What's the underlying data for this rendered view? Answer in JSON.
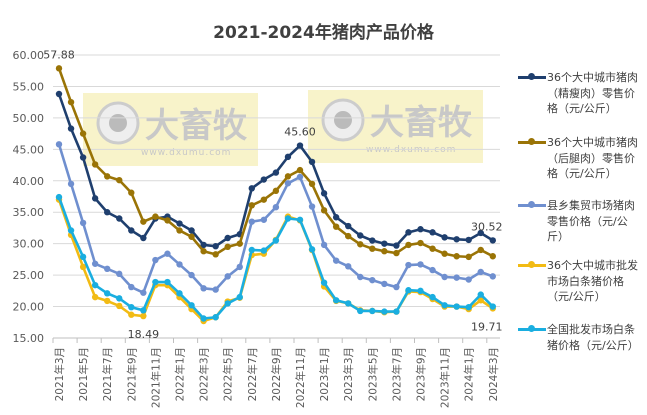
{
  "chart_data": {
    "type": "line",
    "title": "2021-2024年猪肉产品价格",
    "xlabel": "",
    "ylabel": "",
    "ylim": [
      15,
      60
    ],
    "yticks": [
      "15.00",
      "20.00",
      "25.00",
      "30.00",
      "35.00",
      "40.00",
      "45.00",
      "50.00",
      "55.00",
      "60.00"
    ],
    "grid": true,
    "legend_position": "right",
    "x": [
      "2021年3月",
      "2021年4月",
      "2021年5月",
      "2021年6月",
      "2021年7月",
      "2021年8月",
      "2021年9月",
      "2021年10月",
      "2021年11月",
      "2021年12月",
      "2022年1月",
      "2022年2月",
      "2022年3月",
      "2022年4月",
      "2022年5月",
      "2022年6月",
      "2022年7月",
      "2022年8月",
      "2022年9月",
      "2022年10月",
      "2022年11月",
      "2022年12月",
      "2023年1月",
      "2023年2月",
      "2023年3月",
      "2023年4月",
      "2023年5月",
      "2023年6月",
      "2023年7月",
      "2023年8月",
      "2023年9月",
      "2023年10月",
      "2023年11月",
      "2023年12月",
      "2024年1月",
      "2024年2月",
      "2024年3月"
    ],
    "xticks": [
      "2021年3月",
      "2021年5月",
      "2021年7月",
      "2021年9月",
      "2021年11月",
      "2022年1月",
      "2022年3月",
      "2022年5月",
      "2022年7月",
      "2022年9月",
      "2022年11月",
      "2023年1月",
      "2023年3月",
      "2023年5月",
      "2023年7月",
      "2023年9月",
      "2023年11月",
      "2024年1月",
      "2024年3月"
    ],
    "series": [
      {
        "name": "36个大中城市猪肉（精瘦肉）零售价格（元/公斤）",
        "color": "#1f3f6e",
        "values": [
          53.8,
          48.3,
          43.7,
          37.2,
          35.0,
          34.0,
          32.1,
          30.9,
          34.0,
          34.3,
          33.2,
          32.1,
          29.8,
          29.6,
          30.9,
          31.5,
          38.8,
          40.2,
          41.3,
          43.8,
          45.6,
          43.0,
          38.0,
          34.2,
          32.8,
          31.3,
          30.5,
          30.0,
          29.7,
          31.8,
          32.3,
          31.8,
          31.0,
          30.7,
          30.6,
          31.7,
          30.52
        ]
      },
      {
        "name": "36个大中城市猪肉（后腿肉）零售价格（元/公斤）",
        "color": "#9a7406",
        "values": [
          57.88,
          52.5,
          47.5,
          42.6,
          40.7,
          40.1,
          38.1,
          33.5,
          34.3,
          33.7,
          32.1,
          31.1,
          28.8,
          28.3,
          29.5,
          30.0,
          36.1,
          37.0,
          38.4,
          40.7,
          41.7,
          39.5,
          35.3,
          32.7,
          31.2,
          29.9,
          29.2,
          28.8,
          28.5,
          29.8,
          30.1,
          29.2,
          28.4,
          28.0,
          27.9,
          29.0,
          28.0
        ]
      },
      {
        "name": "县乡集贸市场猪肉零售价格（元/公斤）",
        "color": "#6f8fcf",
        "values": [
          45.8,
          39.5,
          33.3,
          26.8,
          26.0,
          25.2,
          23.1,
          22.2,
          27.4,
          28.4,
          26.7,
          25.0,
          22.9,
          22.7,
          24.8,
          26.3,
          33.5,
          33.8,
          35.8,
          39.6,
          40.6,
          35.9,
          29.8,
          27.3,
          26.4,
          24.7,
          24.2,
          23.6,
          23.1,
          26.6,
          26.7,
          25.8,
          24.7,
          24.6,
          24.3,
          25.5,
          24.8
        ]
      },
      {
        "name": "36个大中城市批发市场白条猪价格（元/公斤）",
        "color": "#f2bb14",
        "values": [
          37.0,
          31.4,
          26.3,
          21.5,
          20.9,
          20.1,
          18.7,
          18.49,
          23.4,
          23.4,
          21.5,
          19.6,
          17.7,
          18.3,
          20.8,
          21.4,
          28.2,
          28.4,
          30.6,
          34.3,
          33.7,
          29.0,
          23.2,
          20.9,
          20.5,
          19.4,
          19.3,
          19.1,
          19.2,
          22.4,
          22.3,
          21.2,
          20.0,
          20.0,
          19.6,
          21.0,
          19.71
        ]
      },
      {
        "name": "全国批发市场白条猪价格（元/公斤）",
        "color": "#1aaee0",
        "values": [
          37.4,
          32.1,
          27.9,
          23.4,
          22.1,
          21.3,
          19.9,
          19.4,
          23.9,
          23.9,
          22.1,
          20.2,
          18.1,
          18.3,
          20.5,
          21.5,
          29.0,
          28.9,
          30.5,
          34.0,
          33.8,
          29.1,
          23.8,
          21.0,
          20.5,
          19.3,
          19.3,
          19.2,
          19.2,
          22.6,
          22.5,
          21.5,
          20.2,
          20.0,
          19.9,
          21.9,
          20.0
        ]
      }
    ],
    "annotations": [
      {
        "series": 1,
        "index": 0,
        "text": "57.88",
        "pos": "above"
      },
      {
        "series": 0,
        "index": 20,
        "text": "45.60",
        "pos": "above"
      },
      {
        "series": 0,
        "index": 36,
        "text": "30.52",
        "pos": "above"
      },
      {
        "series": 3,
        "index": 7,
        "text": "18.49",
        "pos": "below"
      },
      {
        "series": 3,
        "index": 36,
        "text": "19.71",
        "pos": "below"
      }
    ]
  },
  "watermark": {
    "brand": "大畜牧",
    "url": "www.dxumu.com"
  }
}
